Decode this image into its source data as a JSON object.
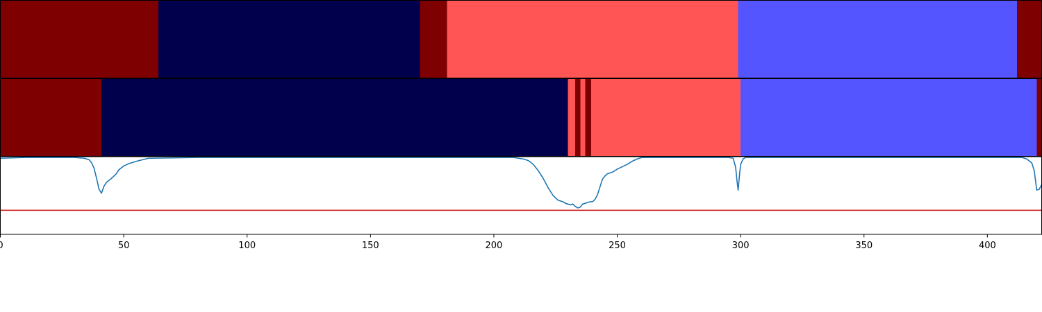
{
  "chart_data": [
    {
      "type": "heatmap",
      "panel": "ground-truth-segments",
      "xlim": [
        0,
        422
      ],
      "segments": [
        {
          "start": 0,
          "end": 64,
          "color": "#7f0000"
        },
        {
          "start": 64,
          "end": 170,
          "color": "#00004c"
        },
        {
          "start": 170,
          "end": 181,
          "color": "#7f0000"
        },
        {
          "start": 181,
          "end": 299,
          "color": "#ff5555"
        },
        {
          "start": 299,
          "end": 412,
          "color": "#5555ff"
        },
        {
          "start": 412,
          "end": 422,
          "color": "#7f0000"
        }
      ]
    },
    {
      "type": "heatmap",
      "panel": "predicted-segments",
      "xlim": [
        0,
        422
      ],
      "segments": [
        {
          "start": 0,
          "end": 41,
          "color": "#7f0000"
        },
        {
          "start": 41,
          "end": 230,
          "color": "#00004c"
        },
        {
          "start": 230,
          "end": 233,
          "color": "#ff5555"
        },
        {
          "start": 233,
          "end": 235,
          "color": "#7f0000"
        },
        {
          "start": 235,
          "end": 237,
          "color": "#ff5555"
        },
        {
          "start": 237,
          "end": 239.5,
          "color": "#7f0000"
        },
        {
          "start": 239.5,
          "end": 300,
          "color": "#ff5555"
        },
        {
          "start": 300,
          "end": 420,
          "color": "#5555ff"
        },
        {
          "start": 420,
          "end": 422,
          "color": "#7f0000"
        }
      ]
    },
    {
      "type": "line",
      "panel": "confidence-curve",
      "xlim": [
        0,
        422
      ],
      "ylim": [
        0,
        1
      ],
      "grid": false,
      "x_ticks": [
        0,
        50,
        100,
        150,
        200,
        250,
        300,
        350,
        400
      ],
      "threshold": {
        "y": 0.31,
        "color": "#d62728"
      },
      "series": [
        {
          "color": "#1f77b4",
          "x": [
            0,
            10,
            20,
            30,
            34,
            36,
            37,
            38,
            39,
            40,
            41,
            42,
            43,
            45,
            47,
            48,
            50,
            52,
            55,
            60,
            80,
            100,
            140,
            180,
            200,
            208,
            212,
            214,
            216,
            218,
            220,
            222,
            224,
            226,
            228,
            229,
            230,
            231,
            232,
            233,
            234,
            235,
            236,
            237,
            238,
            239,
            240,
            241,
            242,
            243,
            244,
            245,
            246,
            247,
            248,
            250,
            252,
            254,
            256,
            258,
            260,
            270,
            280,
            290,
            295,
            297,
            298,
            298.5,
            299,
            299.5,
            300,
            301,
            302,
            305,
            320,
            350,
            380,
            410,
            412,
            414,
            416,
            418,
            419,
            420,
            421,
            422
          ],
          "y": [
            0.98,
            0.99,
            0.99,
            0.99,
            0.98,
            0.96,
            0.92,
            0.85,
            0.72,
            0.58,
            0.53,
            0.62,
            0.67,
            0.72,
            0.78,
            0.83,
            0.88,
            0.91,
            0.94,
            0.98,
            0.99,
            0.99,
            0.99,
            0.99,
            0.99,
            0.99,
            0.97,
            0.95,
            0.9,
            0.82,
            0.72,
            0.6,
            0.5,
            0.44,
            0.42,
            0.4,
            0.39,
            0.38,
            0.39,
            0.36,
            0.34,
            0.35,
            0.39,
            0.4,
            0.41,
            0.42,
            0.42,
            0.45,
            0.51,
            0.61,
            0.71,
            0.75,
            0.78,
            0.79,
            0.8,
            0.84,
            0.87,
            0.9,
            0.94,
            0.97,
            0.99,
            0.99,
            0.99,
            0.99,
            0.99,
            0.98,
            0.86,
            0.7,
            0.57,
            0.75,
            0.9,
            0.97,
            0.99,
            0.99,
            0.99,
            0.99,
            0.99,
            0.99,
            0.99,
            0.99,
            0.97,
            0.92,
            0.82,
            0.57,
            0.58,
            0.64
          ]
        }
      ]
    }
  ]
}
